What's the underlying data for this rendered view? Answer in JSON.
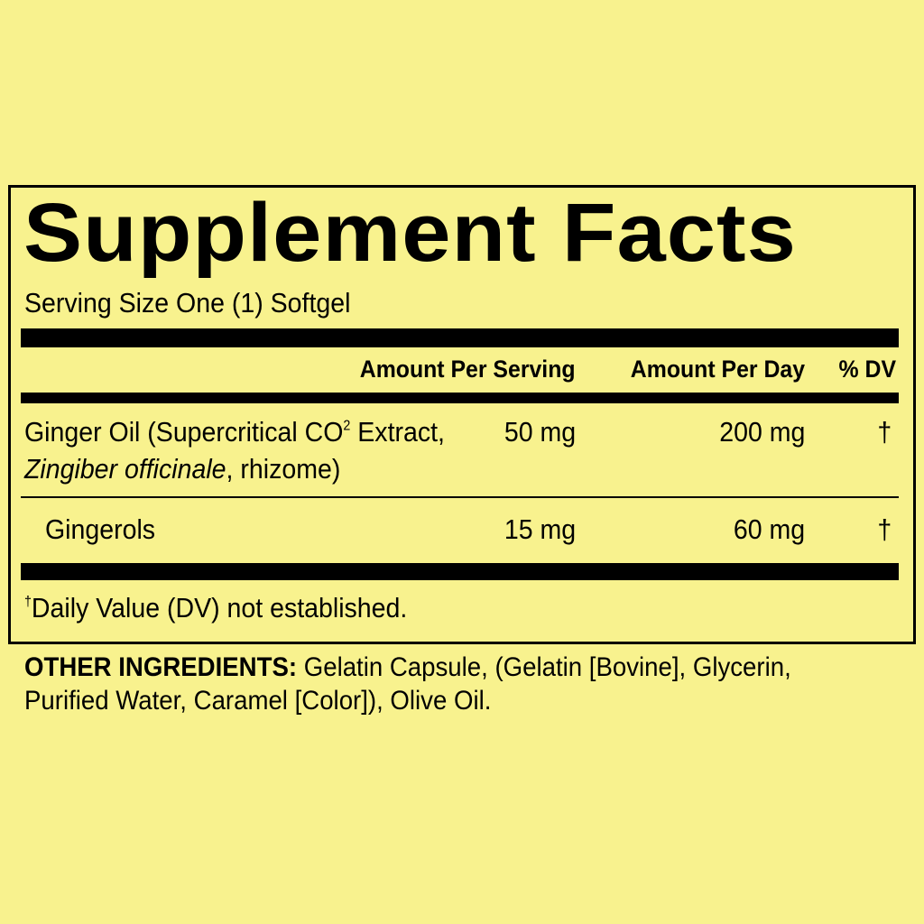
{
  "label": {
    "title": "Supplement Facts",
    "serving_size": "Serving Size One (1) Softgel",
    "headers": {
      "amount_per_serving": "Amount Per Serving",
      "amount_per_day": "Amount Per Day",
      "dv": "% DV"
    },
    "rows": [
      {
        "name_pre": "Ginger Oil (Supercritical CO",
        "name_sup": "2",
        "name_post": " Extract,",
        "name_italic": "Zingiber officinale",
        "name_line2_rest": ", rhizome)",
        "per_serving": "50 mg",
        "per_day": "200 mg",
        "dv": "†"
      },
      {
        "name": "Gingerols",
        "per_serving": "15 mg",
        "per_day": "60 mg",
        "dv": "†"
      }
    ],
    "footnote_symbol": "†",
    "footnote": "Daily Value (DV) not established."
  },
  "other_ingredients": {
    "label": "OTHER INGREDIENTS:",
    "line1": " Gelatin Capsule, (Gelatin [Bovine], Glycerin,",
    "line2": "Purified Water, Caramel [Color]), Olive Oil."
  },
  "colors": {
    "background": "#f8f28e",
    "text": "#000000"
  }
}
